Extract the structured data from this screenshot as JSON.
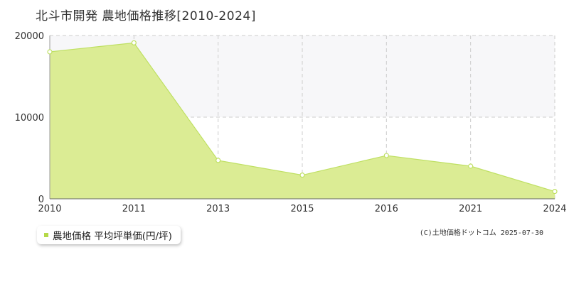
{
  "title": "北斗市開発 農地価格推移[2010-2024]",
  "legend_label": "農地価格 平均坪単価(円/坪)",
  "copyright": "(C)土地価格ドットコム 2025-07-30",
  "colors": {
    "fill": "#dbec94",
    "line": "#bfe063",
    "grid": "#cccccc",
    "axis": "#999999",
    "shade": "#f7f7f9",
    "legend_marker": "#b5d948"
  },
  "chart_data": {
    "type": "area",
    "title": "北斗市開発 農地価格推移[2010-2024]",
    "categories": [
      "2010",
      "2011",
      "2013",
      "2015",
      "2016",
      "2021",
      "2024"
    ],
    "series": [
      {
        "name": "農地価格 平均坪単価(円/坪)",
        "values": [
          18000,
          19100,
          4700,
          2900,
          5300,
          4000,
          900
        ]
      }
    ],
    "yticks": [
      0,
      10000,
      20000
    ],
    "ylim": [
      0,
      20000
    ],
    "grid": true,
    "legend": "bottom-left"
  }
}
